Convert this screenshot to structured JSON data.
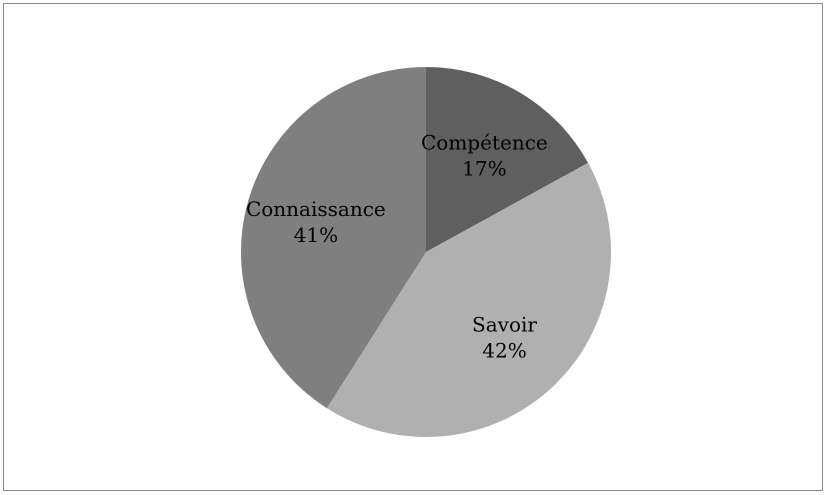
{
  "chart_data": {
    "type": "pie",
    "title": "",
    "slices": [
      {
        "label": "Compétence",
        "value": 17,
        "percent_label": "17%",
        "color": "#5f5f5f"
      },
      {
        "label": "Savoir",
        "value": 42,
        "percent_label": "42%",
        "color": "#b0b0b0"
      },
      {
        "label": "Connaissance",
        "value": 41,
        "percent_label": "41%",
        "color": "#7f7f7f"
      }
    ],
    "start_angle": "12 o'clock",
    "direction": "clockwise",
    "legend": "none",
    "data_labels": "inside"
  }
}
